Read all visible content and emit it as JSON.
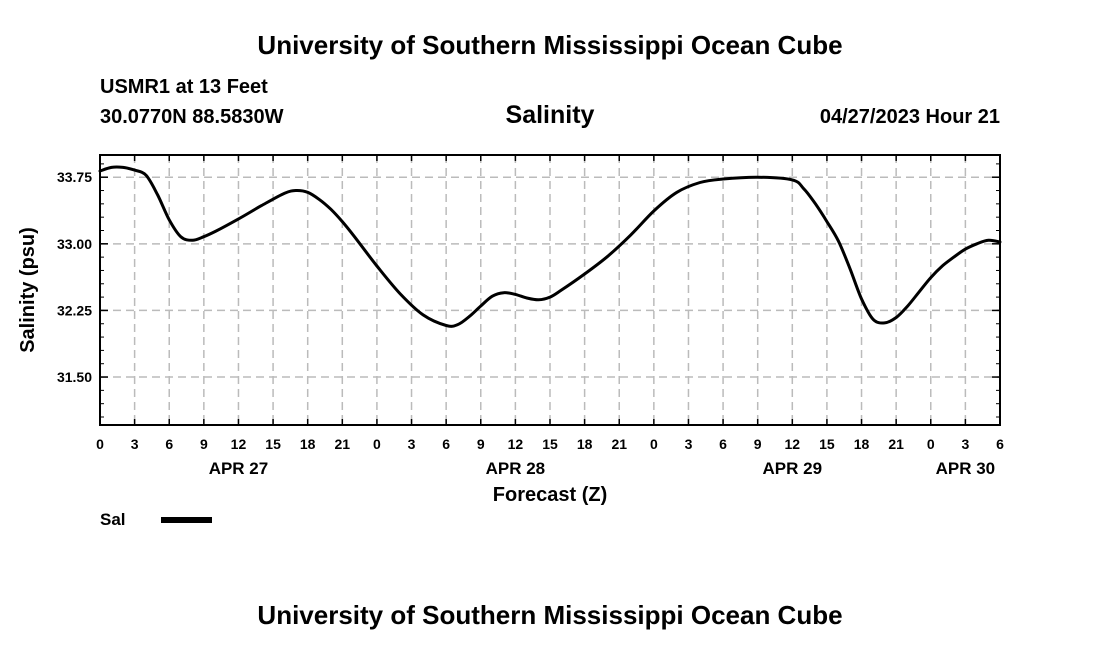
{
  "header": {
    "title": "University of Southern Mississippi Ocean Cube",
    "station": "USMR1 at 13 Feet",
    "coords": "30.0770N  88.5830W",
    "variable": "Salinity",
    "datetime": "04/27/2023 Hour 21"
  },
  "footer": {
    "title": "University of Southern Mississippi Ocean Cube"
  },
  "legend": {
    "label": "Sal"
  },
  "chart_data": {
    "type": "line",
    "title": "Salinity",
    "xlabel": "Forecast (Z)",
    "ylabel": "Salinity (psu)",
    "xlim": [
      0,
      78
    ],
    "ylim": [
      30.96,
      34.0
    ],
    "y_ticks": [
      31.5,
      32.25,
      33.0,
      33.75
    ],
    "y_tick_labels": [
      "31.50",
      "32.25",
      "33.00",
      "33.75"
    ],
    "x_tick_hours": [
      0,
      3,
      6,
      9,
      12,
      15,
      18,
      21,
      24,
      27,
      30,
      33,
      36,
      39,
      42,
      45,
      48,
      51,
      54,
      57,
      60,
      63,
      66,
      69,
      72,
      75,
      78
    ],
    "x_tick_labels": [
      "0",
      "3",
      "6",
      "9",
      "12",
      "15",
      "18",
      "21",
      "0",
      "3",
      "6",
      "9",
      "12",
      "15",
      "18",
      "21",
      "0",
      "3",
      "6",
      "9",
      "12",
      "15",
      "18",
      "21",
      "0",
      "3",
      "6"
    ],
    "date_labels": [
      {
        "hour": 12,
        "label": "APR 27"
      },
      {
        "hour": 36,
        "label": "APR 28"
      },
      {
        "hour": 60,
        "label": "APR 29"
      },
      {
        "hour": 75,
        "label": "APR 30"
      }
    ],
    "grid": true,
    "series": [
      {
        "name": "Sal",
        "color": "#000000",
        "x": [
          0,
          1,
          2,
          3,
          4,
          5,
          6,
          7,
          8,
          9,
          10,
          12,
          14,
          16,
          17,
          18,
          19,
          20,
          21,
          22,
          24,
          26,
          28,
          30,
          31,
          32,
          33,
          34,
          35,
          36,
          37,
          38,
          39,
          40,
          42,
          44,
          46,
          48,
          50,
          52,
          54,
          57,
          60,
          61,
          62,
          63,
          64,
          65,
          66,
          67,
          68,
          69,
          70,
          71,
          72,
          73,
          74,
          75,
          76,
          77,
          78
        ],
        "values": [
          33.82,
          33.86,
          33.86,
          33.83,
          33.77,
          33.55,
          33.27,
          33.08,
          33.04,
          33.08,
          33.14,
          33.28,
          33.43,
          33.57,
          33.6,
          33.58,
          33.5,
          33.39,
          33.25,
          33.09,
          32.75,
          32.44,
          32.2,
          32.08,
          32.09,
          32.18,
          32.3,
          32.41,
          32.45,
          32.43,
          32.39,
          32.37,
          32.4,
          32.48,
          32.66,
          32.86,
          33.1,
          33.37,
          33.58,
          33.69,
          33.73,
          33.75,
          33.72,
          33.62,
          33.45,
          33.25,
          33.03,
          32.72,
          32.38,
          32.15,
          32.11,
          32.17,
          32.3,
          32.46,
          32.62,
          32.75,
          32.85,
          32.94,
          33.0,
          33.04,
          33.02
        ]
      }
    ]
  }
}
